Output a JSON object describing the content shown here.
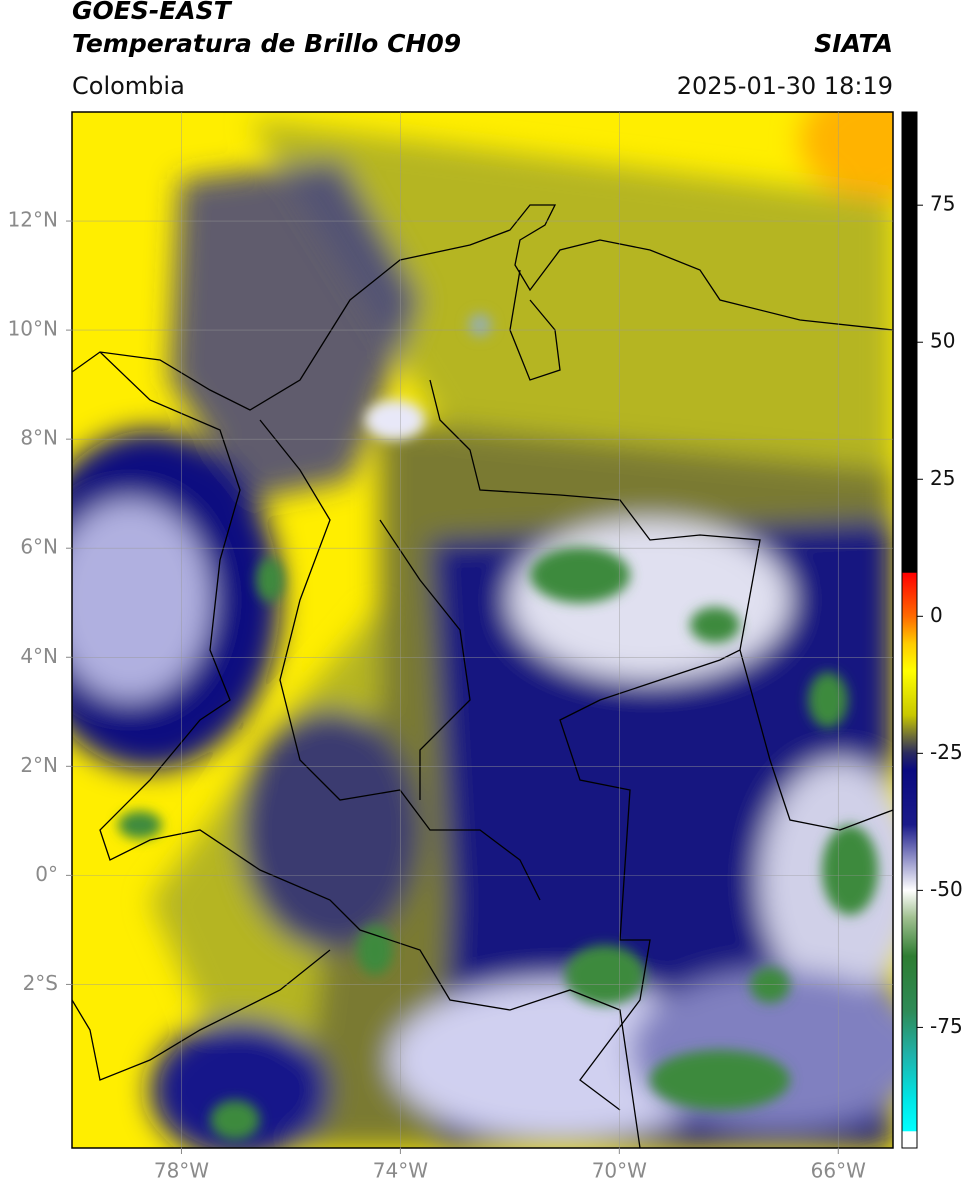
{
  "header": {
    "title": "GOES-EAST",
    "subtitle": "Temperatura de Brillo CH09",
    "source": "SIATA",
    "region": "Colombia",
    "timestamp": "2025-01-30 18:19"
  },
  "map": {
    "xlim": [
      -80,
      -65
    ],
    "ylim": [
      -5,
      14
    ],
    "grid": true,
    "xticks": [
      {
        "value": -78,
        "label": "78°W"
      },
      {
        "value": -74,
        "label": "74°W"
      },
      {
        "value": -70,
        "label": "70°W"
      },
      {
        "value": -66,
        "label": "66°W"
      }
    ],
    "yticks": [
      {
        "value": 12,
        "label": "12°N"
      },
      {
        "value": 10,
        "label": "10°N"
      },
      {
        "value": 8,
        "label": "8°N"
      },
      {
        "value": 6,
        "label": "6°N"
      },
      {
        "value": 4,
        "label": "4°N"
      },
      {
        "value": 2,
        "label": "2°N"
      },
      {
        "value": 0,
        "label": "0°"
      },
      {
        "value": -2,
        "label": "2°S"
      }
    ]
  },
  "colorbar": {
    "lim": [
      -97,
      92
    ],
    "ticks": [
      75,
      50,
      25,
      0,
      -25,
      -50,
      -75
    ],
    "stops": [
      {
        "value": 92,
        "color": "#000000"
      },
      {
        "value": 8,
        "color": "#000000"
      },
      {
        "value": 7.9,
        "color": "#ff0000"
      },
      {
        "value": 0,
        "color": "#ff6a00"
      },
      {
        "value": -5,
        "color": "#ffcc00"
      },
      {
        "value": -10,
        "color": "#ffff00"
      },
      {
        "value": -18,
        "color": "#c8c800"
      },
      {
        "value": -22,
        "color": "#6b6b3a"
      },
      {
        "value": -25,
        "color": "#2a2a60"
      },
      {
        "value": -28,
        "color": "#0a0a80"
      },
      {
        "value": -38,
        "color": "#1a1a8a"
      },
      {
        "value": -45,
        "color": "#a0a0d0"
      },
      {
        "value": -50,
        "color": "#ffffff"
      },
      {
        "value": -55,
        "color": "#a0c090"
      },
      {
        "value": -62,
        "color": "#2e7d32"
      },
      {
        "value": -72,
        "color": "#2e8b57"
      },
      {
        "value": -80,
        "color": "#20b2aa"
      },
      {
        "value": -88,
        "color": "#00e5e5"
      },
      {
        "value": -93.9,
        "color": "#00ffff"
      },
      {
        "value": -94,
        "color": "#ffffff"
      },
      {
        "value": -97,
        "color": "#ffffff"
      }
    ]
  }
}
